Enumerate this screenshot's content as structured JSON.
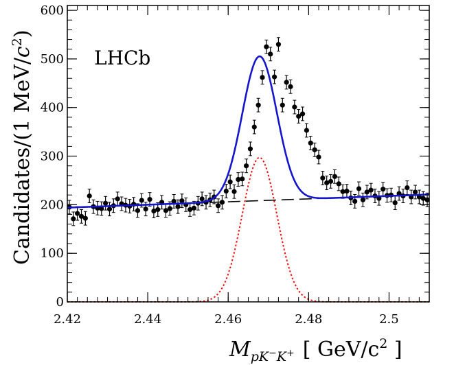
{
  "chart_data": {
    "type": "scatter",
    "experiment_label": "LHCb",
    "xlabel": "M_{pK−K+} [ GeV/c² ]",
    "ylabel": "Candidates/(1 MeV/c²)",
    "xlabel_parts": {
      "symbol": "M",
      "subscript": "pK",
      "sup1": "−",
      "mid": "K",
      "sup2": "+",
      "units": "[ GeV/c",
      "units_sup": "2",
      "units_close": " ]"
    },
    "ylabel_parts": {
      "main": "Candidates/(1 MeV/",
      "c": "c",
      "sup": "2",
      "close": ")"
    },
    "xlim": [
      2.42,
      2.51
    ],
    "ylim": [
      0,
      610
    ],
    "x_ticks": [
      2.42,
      2.44,
      2.46,
      2.48,
      2.5
    ],
    "x_tick_labels": [
      "2.42",
      "2.44",
      "2.46",
      "2.48",
      "2.5"
    ],
    "y_ticks": [
      0,
      100,
      200,
      300,
      400,
      500,
      600
    ],
    "y_tick_labels": [
      "0",
      "100",
      "200",
      "300",
      "400",
      "500",
      "600"
    ],
    "grid": false,
    "legend": "none",
    "colors": {
      "data": "#000000",
      "total_fit": "#1515cc",
      "background": "#000000",
      "signal": "#ee1111"
    },
    "series": [
      {
        "role": "data",
        "style": "points-with-error-bars",
        "x": [
          2.4205,
          2.4215,
          2.4225,
          2.4235,
          2.4245,
          2.4255,
          2.4265,
          2.4275,
          2.4285,
          2.4295,
          2.4305,
          2.4315,
          2.4325,
          2.4335,
          2.4345,
          2.4355,
          2.4365,
          2.4375,
          2.4385,
          2.4395,
          2.4405,
          2.4415,
          2.4425,
          2.4435,
          2.4445,
          2.4455,
          2.4465,
          2.4475,
          2.4485,
          2.4495,
          2.4505,
          2.4515,
          2.4525,
          2.4535,
          2.4545,
          2.4555,
          2.4565,
          2.4575,
          2.4585,
          2.4595,
          2.4605,
          2.4615,
          2.4625,
          2.4635,
          2.4645,
          2.4655,
          2.4665,
          2.4675,
          2.4685,
          2.4695,
          2.4705,
          2.4715,
          2.4725,
          2.4735,
          2.4745,
          2.4755,
          2.4765,
          2.4775,
          2.4785,
          2.4795,
          2.4805,
          2.4815,
          2.4825,
          2.4835,
          2.4845,
          2.4855,
          2.4865,
          2.4875,
          2.4885,
          2.4895,
          2.4905,
          2.4915,
          2.4925,
          2.4935,
          2.4945,
          2.4955,
          2.4965,
          2.4975,
          2.4985,
          2.4995,
          2.5005,
          2.5015,
          2.5025,
          2.5035,
          2.5045,
          2.5055,
          2.5065,
          2.5075,
          2.5085,
          2.5095
        ],
        "y": [
          195,
          171,
          182,
          176,
          172,
          218,
          196,
          193,
          192,
          203,
          191,
          198,
          212,
          202,
          199,
          197,
          201,
          188,
          209,
          191,
          211,
          187,
          190,
          205,
          188,
          192,
          207,
          196,
          208,
          200,
          190,
          193,
          203,
          212,
          205,
          210,
          216,
          198,
          205,
          228,
          247,
          227,
          252,
          253,
          280,
          315,
          360,
          405,
          462,
          525,
          510,
          463,
          530,
          405,
          452,
          443,
          401,
          382,
          387,
          353,
          327,
          313,
          298,
          255,
          245,
          248,
          258,
          243,
          227,
          228,
          214,
          207,
          233,
          210,
          226,
          230,
          218,
          213,
          232,
          219,
          220,
          204,
          223,
          218,
          235,
          216,
          226,
          216,
          213,
          210
        ],
        "y_err": 14
      },
      {
        "role": "total fit",
        "style": "solid"
      },
      {
        "role": "background",
        "style": "long-dash",
        "y_at_xmin": 194,
        "y_at_xmax": 221
      },
      {
        "role": "signal",
        "style": "dotted",
        "mean": 2.4678,
        "sigma": 0.0043,
        "peak": 297
      }
    ]
  }
}
